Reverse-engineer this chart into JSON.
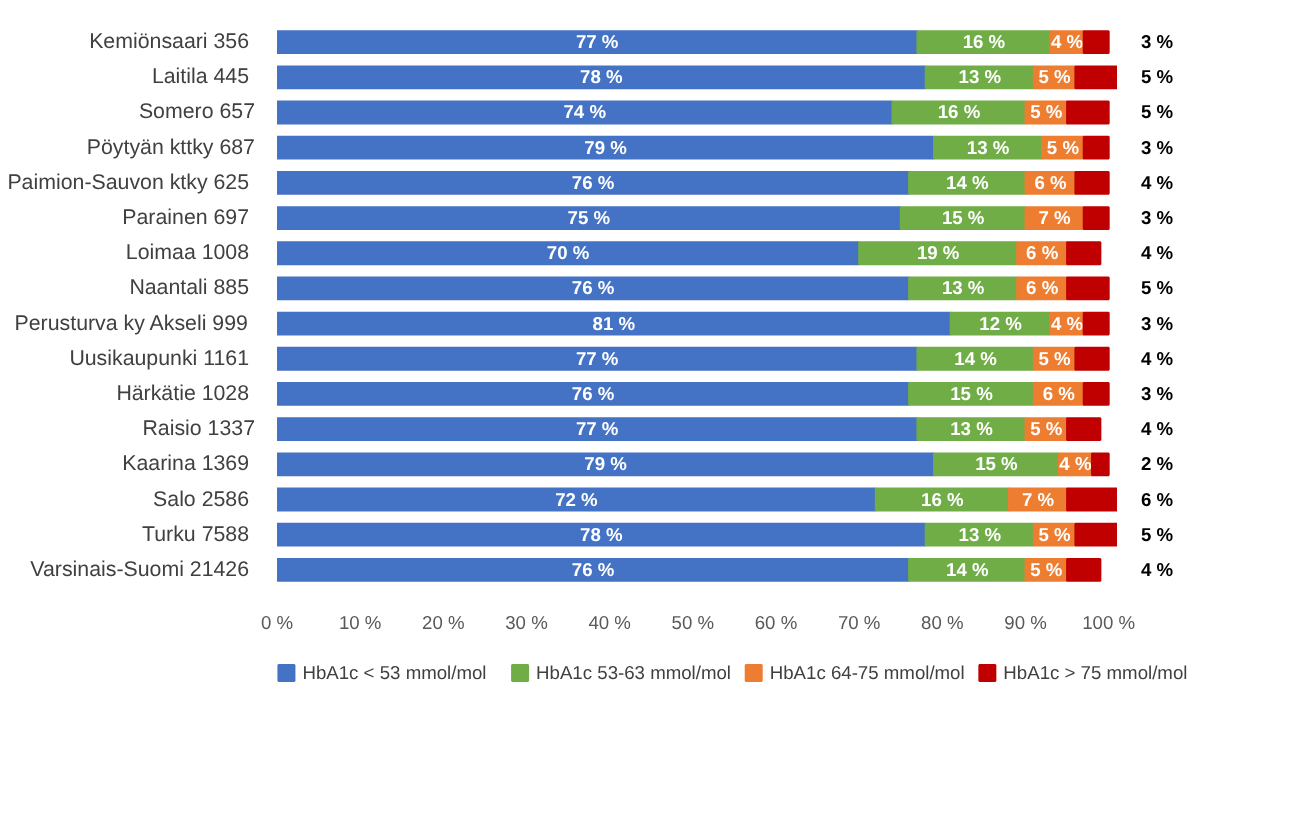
{
  "chart_data": {
    "type": "bar",
    "orientation": "horizontal",
    "stacked": true,
    "categories": [
      "Kemiönsaari  356",
      "Laitila  445",
      "Somero 657",
      "Pöytyän kttky 687",
      "Paimion-Sauvon ktky  625",
      "Parainen  697",
      "Loimaa  1008",
      "Naantali  885",
      "Perusturva ky Akseli  999",
      "Uusikaupunki  1161",
      "Härkätie  1028",
      "Raisio 1337",
      "Kaarina  1369",
      "Salo  2586",
      "Turku  7588",
      "Varsinais-Suomi  21426"
    ],
    "series": [
      {
        "name": "HbA1c < 53 mmol/mol",
        "color": "#4472c4",
        "values": [
          77,
          78,
          74,
          79,
          76,
          75,
          70,
          76,
          81,
          77,
          76,
          77,
          79,
          72,
          78,
          76
        ],
        "value_labels": [
          "77 %",
          "78 %",
          "74 %",
          "79 %",
          "76 %",
          "75 %",
          "70 %",
          "76 %",
          "81 %",
          "77 %",
          "76 %",
          "77 %",
          "79 %",
          "72 %",
          "78 %",
          "76 %"
        ]
      },
      {
        "name": "HbA1c 53-63 mmol/mol",
        "color": "#70ad47",
        "values": [
          16,
          13,
          16,
          13,
          14,
          15,
          19,
          13,
          12,
          14,
          15,
          13,
          15,
          16,
          13,
          14
        ],
        "value_labels": [
          "16 %",
          "13 %",
          "16 %",
          "13 %",
          "14 %",
          "15 %",
          "19 %",
          "13 %",
          "12 %",
          "14 %",
          "15 %",
          "13 %",
          "15 %",
          "16 %",
          "13 %",
          "14 %"
        ]
      },
      {
        "name": "HbA1c 64-75 mmol/mol",
        "color": "#ed7d31",
        "values": [
          4,
          5,
          5,
          5,
          6,
          7,
          6,
          6,
          4,
          5,
          6,
          5,
          4,
          7,
          5,
          5
        ],
        "value_labels": [
          "4 %",
          "5 %",
          "5 %",
          "5 %",
          "6 %",
          "7 %",
          "6 %",
          "6 %",
          "4 %",
          "5 %",
          "6 %",
          "5 %",
          "4 %",
          "7 %",
          "5 %",
          "5 %"
        ]
      },
      {
        "name": "HbA1c > 75 mmol/mol",
        "color": "#c00000",
        "values": [
          3,
          5,
          5,
          3,
          4,
          3,
          4,
          5,
          3,
          4,
          3,
          4,
          2,
          6,
          5,
          4
        ],
        "value_labels": [
          "3 %",
          "5 %",
          "5 %",
          "3 %",
          "4 %",
          "3 %",
          "4 %",
          "5 %",
          "3 %",
          "4 %",
          "3 %",
          "4 %",
          "2 %",
          "6 %",
          "5 %",
          "4 %"
        ]
      }
    ],
    "xlim": [
      0,
      101
    ],
    "xticks": [
      {
        "value": 0,
        "label": "0 %"
      },
      {
        "value": 10,
        "label": "10 %"
      },
      {
        "value": 20,
        "label": "20 %"
      },
      {
        "value": 30,
        "label": "30 %"
      },
      {
        "value": 40,
        "label": "40 %"
      },
      {
        "value": 50,
        "label": "50 %"
      },
      {
        "value": 60,
        "label": "60 %"
      },
      {
        "value": 70,
        "label": "70 %"
      },
      {
        "value": 80,
        "label": "80 %"
      },
      {
        "value": 90,
        "label": "90 %"
      },
      {
        "value": 100,
        "label": "100 %"
      }
    ],
    "grid": false,
    "legend": "bottom"
  }
}
